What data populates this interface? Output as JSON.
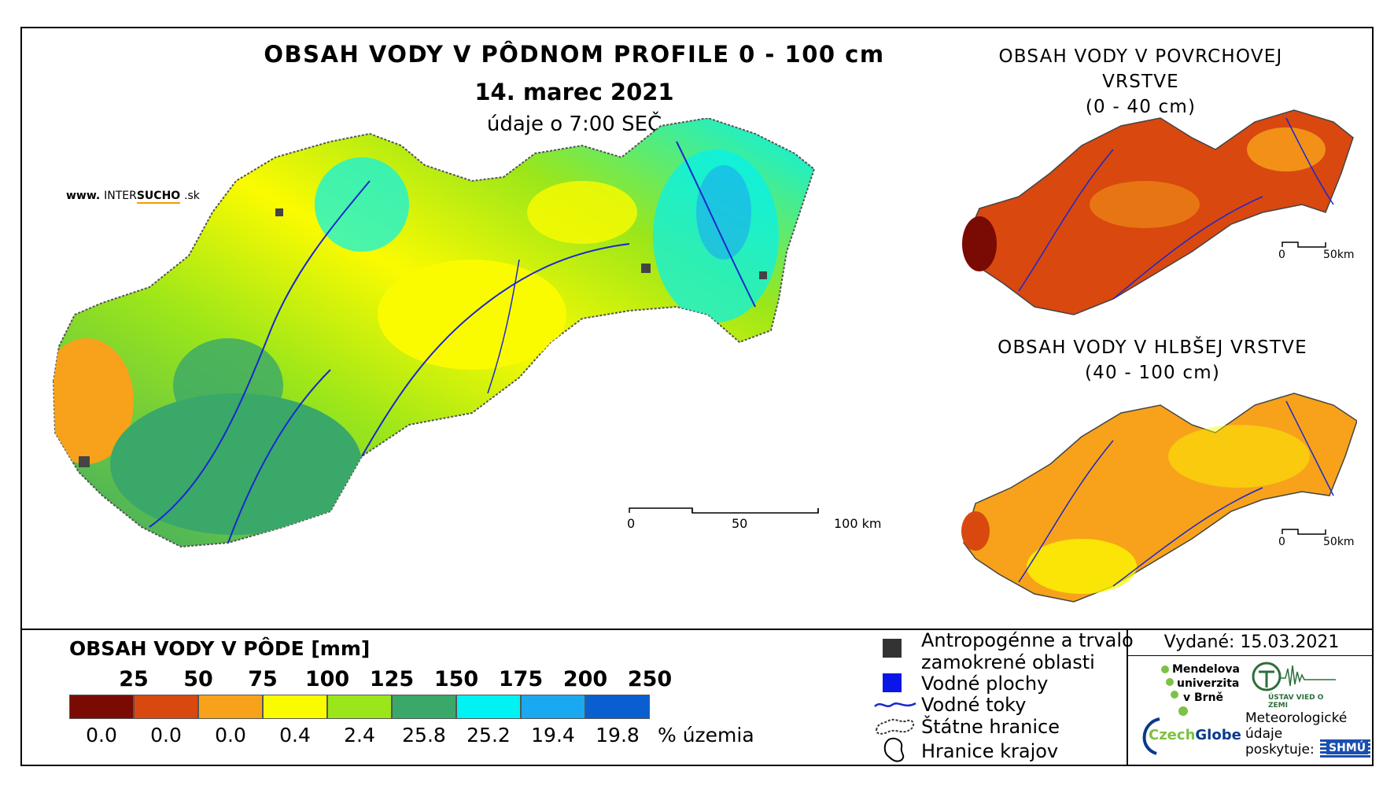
{
  "header": {
    "title": "OBSAH VODY V PÔDNOM PROFILE 0 - 100 cm",
    "date": "14. marec 2021",
    "time": "údaje o 7:00 SEČ",
    "website_prefix": "www.",
    "website_brand_a": "INTER",
    "website_brand_b": "SUCHO",
    "website_suffix": ".sk"
  },
  "main_map": {
    "scalebar": {
      "labels": [
        "0",
        "50",
        "100 km"
      ]
    }
  },
  "surface_map": {
    "title_line1": "OBSAH VODY V POVRCHOVEJ VRSTVE",
    "title_line2": "(0 - 40 cm)",
    "scalebar": {
      "labels": [
        "0",
        "50km"
      ]
    }
  },
  "deep_map": {
    "title_line1": "OBSAH VODY V HLBŠEJ VRSTVE",
    "title_line2": "(40 - 100 cm)",
    "scalebar": {
      "labels": [
        "0",
        "50km"
      ]
    }
  },
  "legend": {
    "title": "OBSAH VODY V PÔDE [mm]",
    "thresholds": [
      "25",
      "50",
      "75",
      "100",
      "125",
      "150",
      "175",
      "200",
      "250"
    ],
    "colors": [
      "#7a0a04",
      "#d9480f",
      "#f7a21a",
      "#fbfb00",
      "#9be61a",
      "#3aa869",
      "#00f2f2",
      "#1aa9f0",
      "#0a5fd0"
    ],
    "percentages": [
      "0.0",
      "0.0",
      "0.0",
      "0.4",
      "2.4",
      "25.8",
      "25.2",
      "19.4",
      "19.8"
    ],
    "percent_unit": "% územia"
  },
  "symbols": {
    "urban": "Antropogénne a trvalo",
    "urban_2": "zamokrené oblasti",
    "water_bodies": "Vodné plochy",
    "rivers": "Vodné toky",
    "state_border": "Štátne hranice",
    "region_border": "Hranice krajov"
  },
  "issued": "Vydané: 15.03.2021",
  "logos": {
    "mendel_1": "Mendelova",
    "mendel_2": "univerzita",
    "mendel_3": "v Brně",
    "czechglobe_a": "Czech",
    "czechglobe_b": "Globe",
    "uvgz": "ÚSTAV VIED O ZEMI",
    "meteo_1": "Meteorologické",
    "meteo_2": "údaje",
    "meteo_3": "poskytuje:",
    "shmu": "SHMÚ"
  }
}
